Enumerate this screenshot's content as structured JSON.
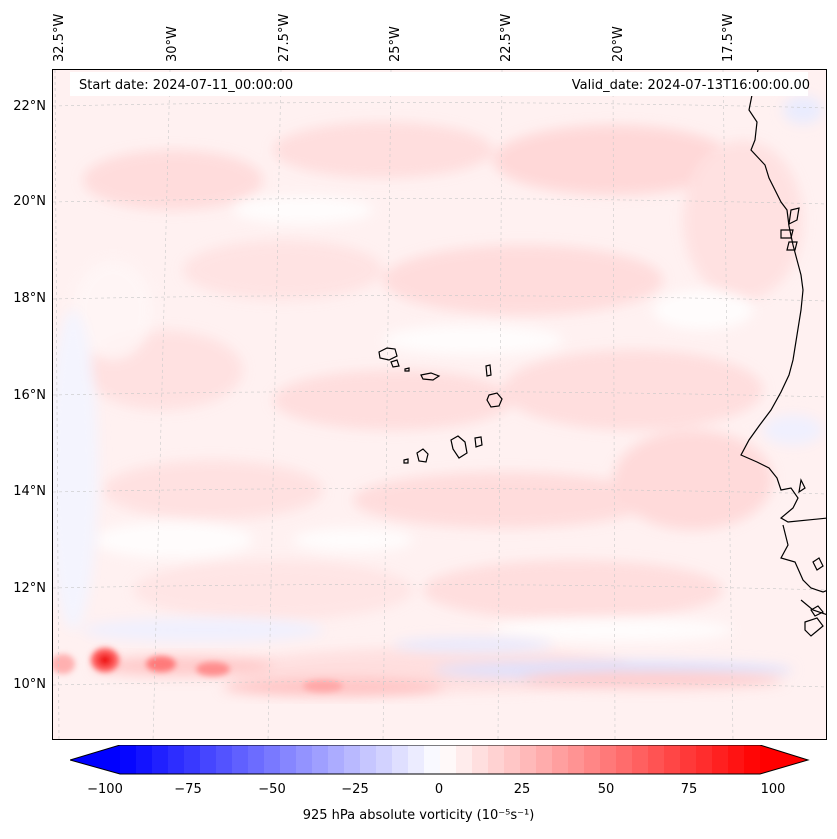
{
  "map": {
    "start_date": "Start date: 2024-07-11_00:00:00",
    "valid_date": "Valid_date: 2024-07-13T16:00:00.00",
    "lon_labels": [
      "32.5°W",
      "30°W",
      "27.5°W",
      "25°W",
      "22.5°W",
      "20°W",
      "17.5°W"
    ],
    "lat_labels": [
      "22°N",
      "20°N",
      "18°N",
      "16°N",
      "14°N",
      "12°N",
      "10°N"
    ],
    "field_variable": "925 hPa absolute vorticity",
    "colormap": "bwr",
    "colors": {
      "negative": "#0000ff",
      "zero": "#ffffff",
      "positive": "#ff0000"
    },
    "features": [
      "coastline",
      "cape-verde-islands",
      "west-africa-coast",
      "gridlines"
    ]
  },
  "colorbar": {
    "ticks": [
      "−100",
      "−75",
      "−50",
      "−25",
      "0",
      "25",
      "50",
      "75",
      "100"
    ],
    "min": -100,
    "max": 100,
    "label": "925 hPa absolute vorticity (10⁻⁵s⁻¹)"
  }
}
